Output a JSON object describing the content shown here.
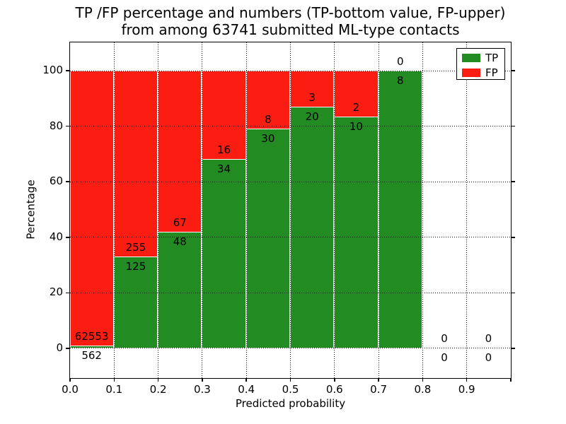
{
  "title": {
    "line1": "TP /FP percentage and numbers (TP-bottom value, FP-upper)",
    "line2": "from among 63741 submitted ML-type contacts"
  },
  "chart_data": {
    "type": "bar",
    "stacked": true,
    "normalized_to_percent": true,
    "title": "TP /FP percentage and numbers (TP-bottom value, FP-upper) from among 63741 submitted ML-type contacts",
    "total_contacts": 63741,
    "xlabel": "Predicted probability",
    "ylabel": "Percentage",
    "bin_edges": [
      0.0,
      0.1,
      0.2,
      0.3,
      0.4,
      0.5,
      0.6,
      0.7,
      0.8,
      0.9,
      1.0
    ],
    "categories": [
      "0.0-0.1",
      "0.1-0.2",
      "0.2-0.3",
      "0.3-0.4",
      "0.4-0.5",
      "0.5-0.6",
      "0.6-0.7",
      "0.7-0.8",
      "0.8-0.9",
      "0.9-1.0"
    ],
    "series": [
      {
        "name": "TP",
        "color": "#228B22",
        "counts": [
          562,
          125,
          48,
          34,
          30,
          20,
          10,
          8,
          0,
          0
        ],
        "percentages": [
          0.89,
          32.89,
          41.74,
          68.0,
          78.95,
          86.96,
          83.33,
          100.0,
          0,
          0
        ]
      },
      {
        "name": "FP",
        "color": "#FB1D12",
        "counts": [
          62553,
          255,
          67,
          16,
          8,
          3,
          2,
          0,
          0,
          0
        ],
        "percentages": [
          99.11,
          67.11,
          58.26,
          32.0,
          21.05,
          13.04,
          16.67,
          0,
          0,
          0
        ]
      }
    ],
    "x_tick_labels": [
      "0.0",
      "0.1",
      "0.2",
      "0.3",
      "0.4",
      "0.5",
      "0.6",
      "0.7",
      "0.8",
      "0.9"
    ],
    "y_tick_values": [
      0,
      20,
      40,
      60,
      80,
      100
    ],
    "y_tick_labels": [
      "0",
      "20",
      "40",
      "60",
      "80",
      "100"
    ],
    "xlim": [
      0.0,
      1.0
    ],
    "ylim": [
      -10.7,
      110.2
    ],
    "grid": true,
    "grid_style": "dotted",
    "legend": {
      "position": "upper right",
      "entries": [
        "TP",
        "FP"
      ]
    }
  }
}
